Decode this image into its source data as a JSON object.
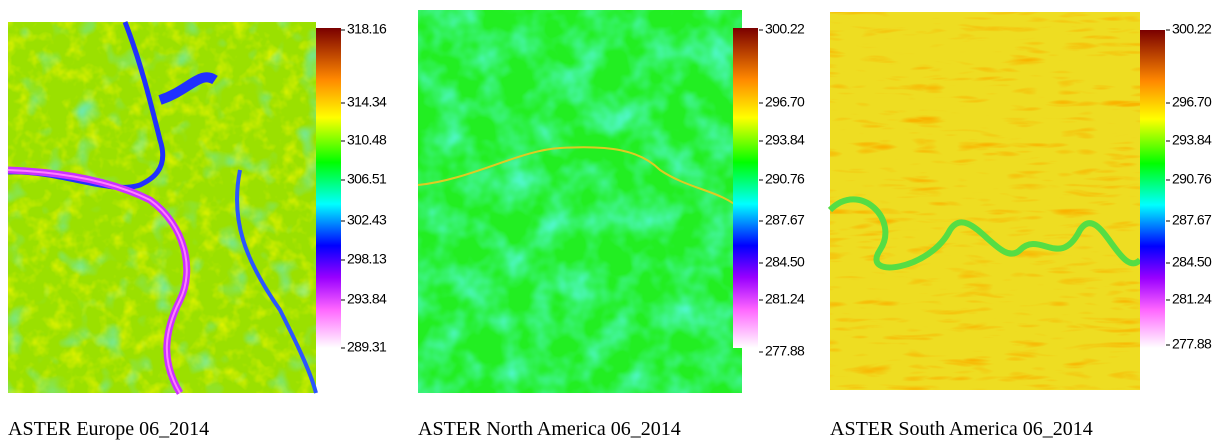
{
  "panels": [
    {
      "caption": "ASTER Europe 06_2014",
      "colorbar_ticks": [
        "318.16",
        "314.34",
        "310.48",
        "306.51",
        "302.43",
        "298.13",
        "293.84",
        "289.31"
      ]
    },
    {
      "caption": "ASTER North America 06_2014",
      "colorbar_ticks": [
        "300.22",
        "296.70",
        "293.84",
        "290.76",
        "287.67",
        "284.50",
        "281.24",
        "277.88"
      ]
    },
    {
      "caption": "ASTER South America 06_2014",
      "colorbar_ticks": [
        "300.22",
        "296.70",
        "293.84",
        "290.76",
        "287.67",
        "284.50",
        "281.24",
        "277.88"
      ]
    }
  ]
}
